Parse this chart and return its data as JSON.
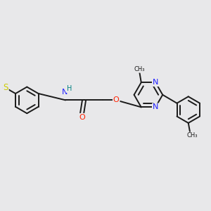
{
  "background_color": "#e8e8ea",
  "figsize": [
    3.0,
    3.0
  ],
  "dpi": 100,
  "bond_color": "#1a1a1a",
  "bond_width": 1.4,
  "atom_colors": {
    "N": "#2020ff",
    "O": "#ff2000",
    "S": "#cccc00",
    "H": "#008080"
  },
  "font_size": 7.5
}
